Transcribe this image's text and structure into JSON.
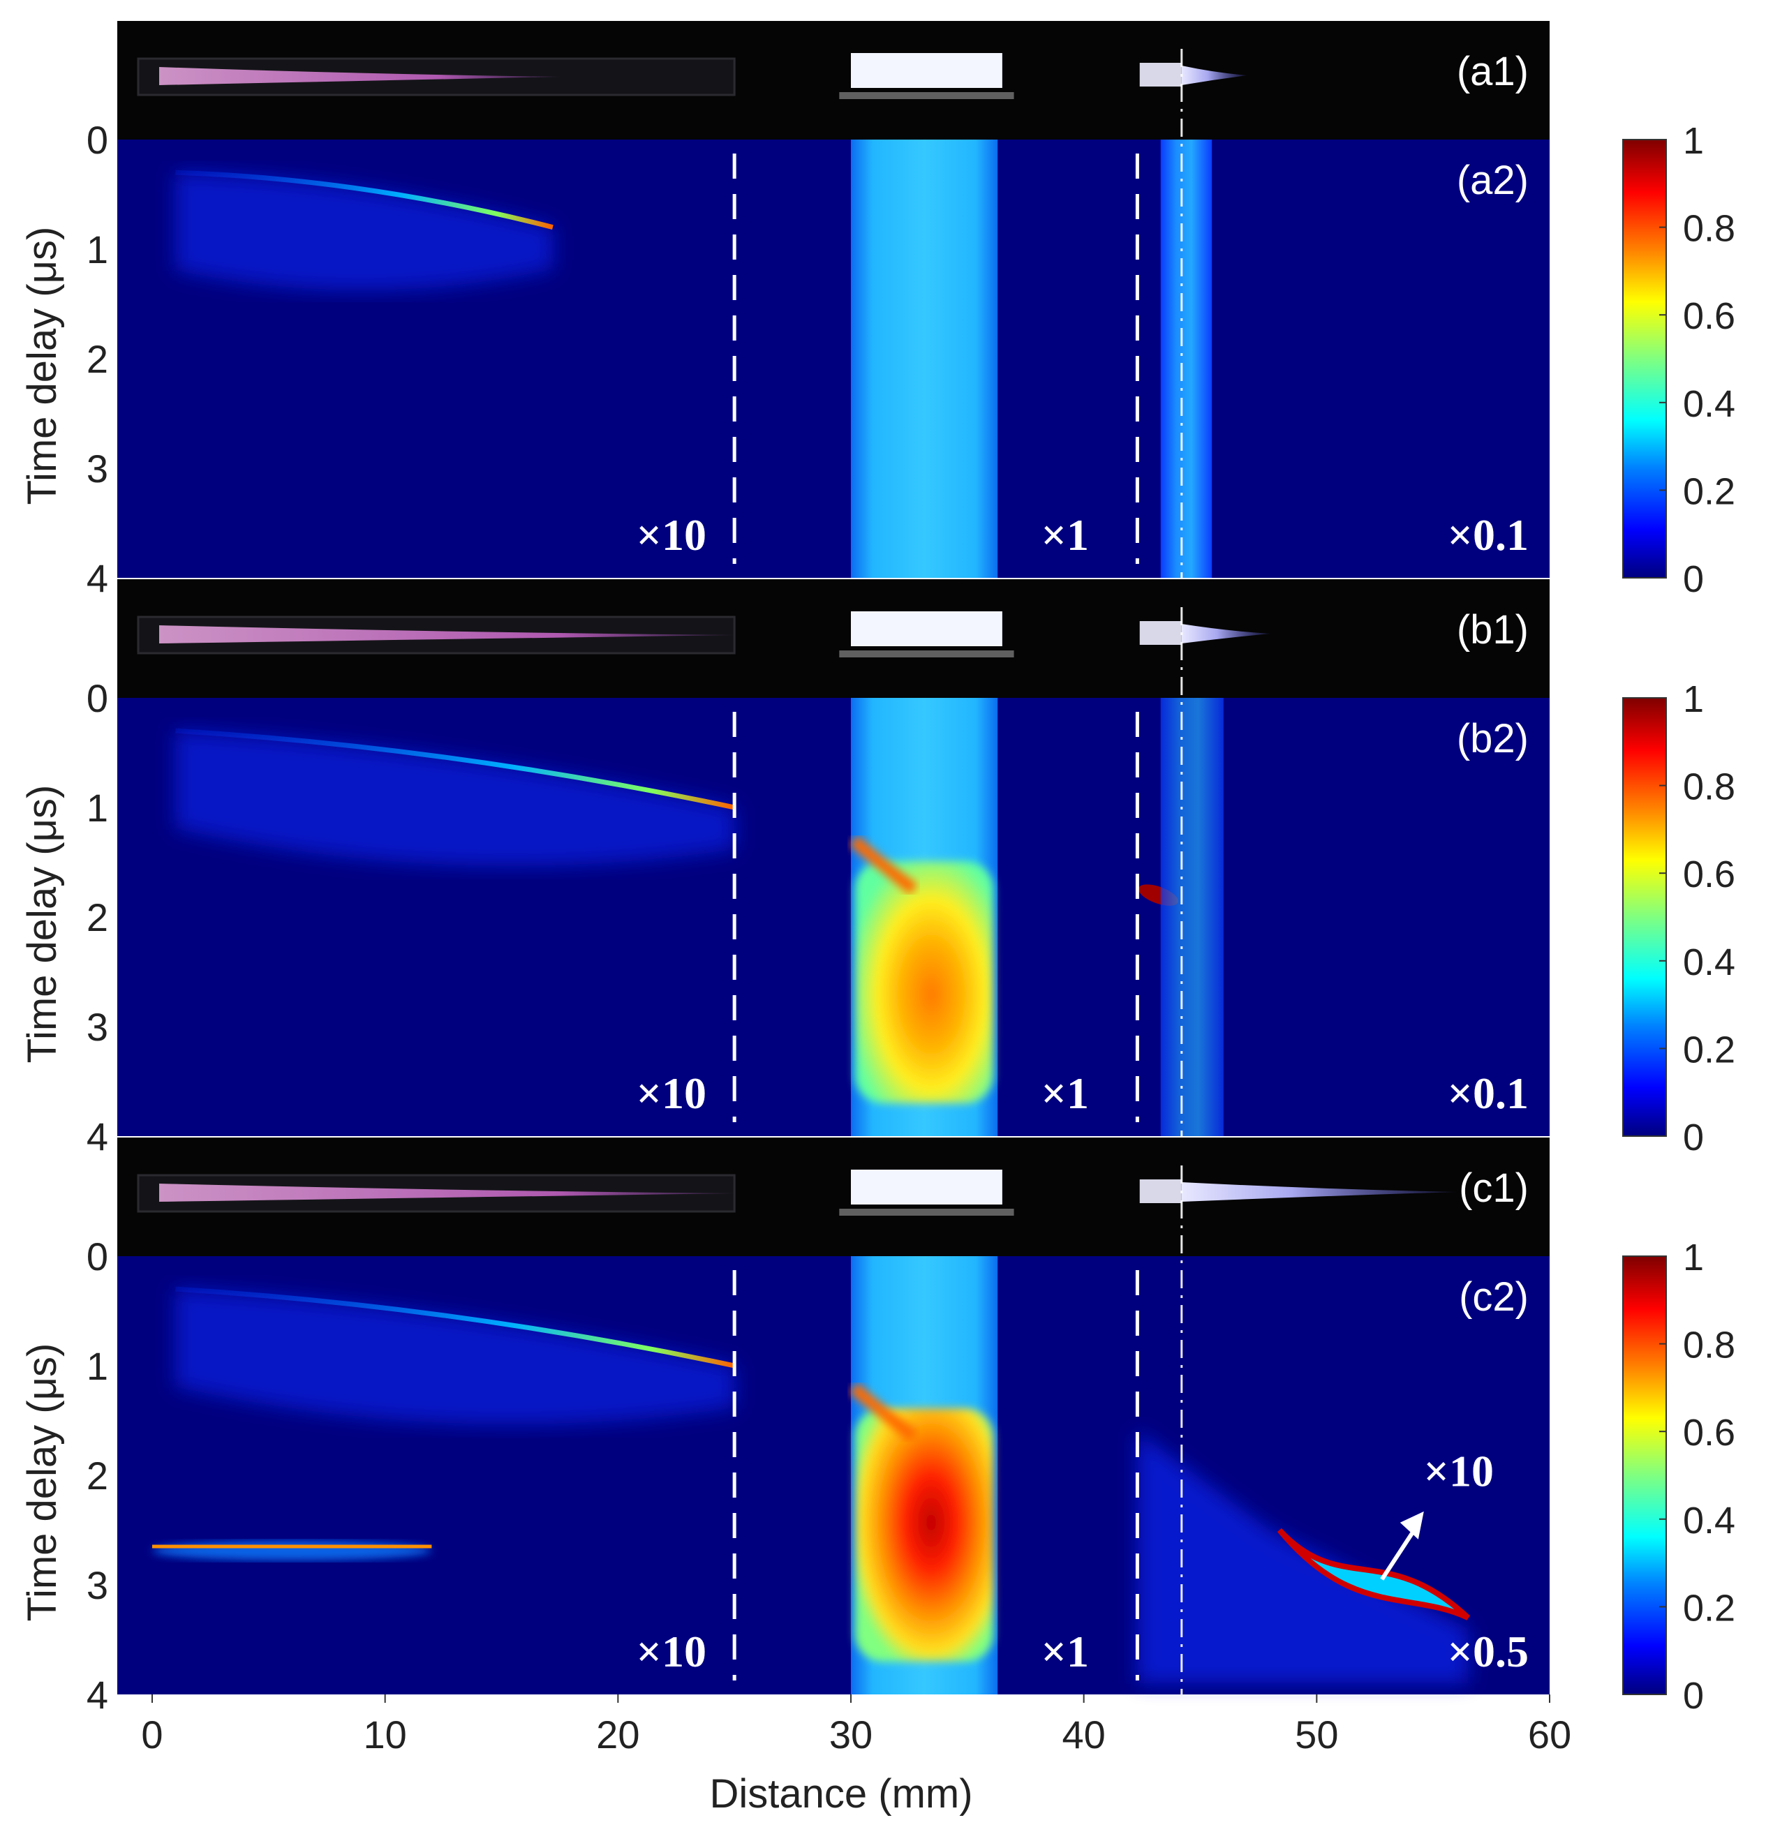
{
  "chart_data": {
    "type": "heatmap",
    "xlabel": "Distance (mm)",
    "ylabel": "Time delay (μs)",
    "xlim": [
      0,
      60
    ],
    "ylim": [
      0,
      4
    ],
    "x_ticks": [
      "0",
      "10",
      "20",
      "30",
      "40",
      "50",
      "60"
    ],
    "y_ticks_top": [
      "0"
    ],
    "y_ticks": [
      "1",
      "2",
      "3",
      "4"
    ],
    "colormap": "jet",
    "colorbar": {
      "range": [
        0,
        1
      ],
      "ticks": [
        "1",
        "0.8",
        "0.6",
        "0.4",
        "0.2",
        "0"
      ],
      "stops": [
        "#00007f",
        "#0000ff",
        "#0080ff",
        "#00ffff",
        "#80ff80",
        "#ffff00",
        "#ff8000",
        "#ff0000",
        "#7f0000"
      ]
    },
    "region_boundaries_mm": [
      25,
      42.3
    ],
    "target_line_mm": 44.2,
    "panels": [
      {
        "photo_label": "(a1)",
        "map_label": "(a2)",
        "multipliers": [
          "×10",
          "×1",
          "×0.1"
        ],
        "photo_plume_end_mm": 17.5,
        "photo_jet_end_mm": 47,
        "features": [
          {
            "name": "ionization-wave-1",
            "x": [
              1,
              17.2
            ],
            "t": [
              0.3,
              0.8
            ],
            "peak": 0.9
          },
          {
            "name": "tube-column",
            "x": [
              30,
              36.3
            ],
            "t": [
              0,
              4
            ],
            "level": 0.35
          },
          {
            "name": "target-column",
            "x": [
              43.3,
              45.5
            ],
            "t": [
              0,
              4
            ],
            "level": 0.3
          }
        ]
      },
      {
        "photo_label": "(b1)",
        "map_label": "(b2)",
        "multipliers": [
          "×10",
          "×1",
          "×0.1"
        ],
        "photo_plume_end_mm": 25,
        "photo_jet_end_mm": 48,
        "features": [
          {
            "name": "ionization-wave-1",
            "x": [
              1,
              25
            ],
            "t": [
              0.3,
              1.0
            ],
            "peak": 0.9
          },
          {
            "name": "tube-discharge",
            "x": [
              30,
              36.3
            ],
            "t": [
              1.3,
              3.5
            ],
            "peak": 0.65
          },
          {
            "name": "target-spot",
            "x": [
              42.3,
              43.8
            ],
            "t": [
              1.7,
              1.9
            ],
            "peak": 1.0
          }
        ]
      },
      {
        "photo_label": "(c1)",
        "map_label": "(c2)",
        "multipliers": [
          "×10",
          "×1",
          "×0.5"
        ],
        "inset_multiplier": "×10",
        "photo_plume_end_mm": 25,
        "photo_jet_end_mm": 56,
        "features": [
          {
            "name": "ionization-wave-1",
            "x": [
              1,
              25
            ],
            "t": [
              0.3,
              1.0
            ],
            "peak": 0.9
          },
          {
            "name": "return-stroke",
            "x": [
              0,
              12
            ],
            "t": [
              2.65,
              2.65
            ],
            "peak": 0.6
          },
          {
            "name": "tube-discharge",
            "x": [
              30,
              36.3
            ],
            "t": [
              1.2,
              3.5
            ],
            "peak": 0.85
          },
          {
            "name": "free-jet-front",
            "x": [
              48,
              56.5
            ],
            "t": [
              2.5,
              3.3
            ],
            "peak": 1.0
          }
        ]
      }
    ]
  }
}
